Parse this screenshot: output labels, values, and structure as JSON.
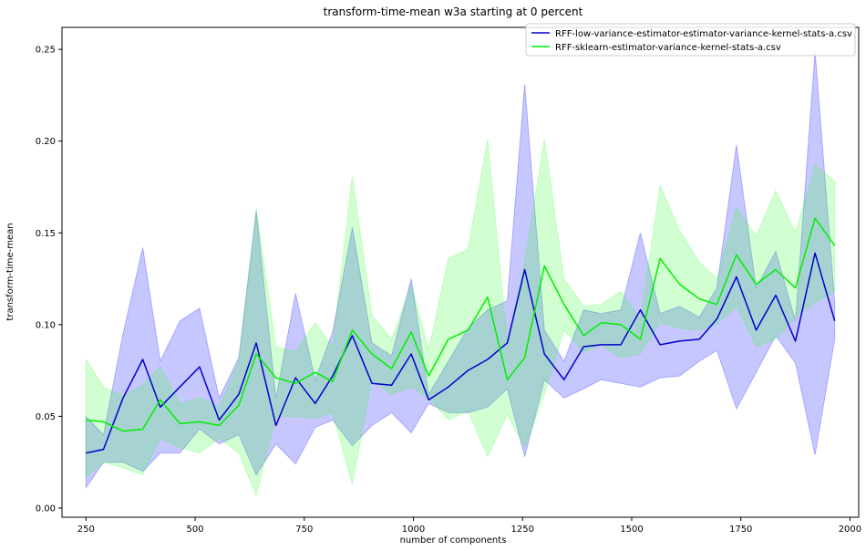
{
  "chart_data": {
    "type": "line",
    "title": "transform-time-mean w3a starting at 0 percent",
    "xlabel": "number of components",
    "ylabel": "transform-time-mean",
    "xlim": [
      195,
      2020
    ],
    "ylim": [
      -0.005,
      0.262
    ],
    "x_ticks": [
      250,
      500,
      750,
      1000,
      1250,
      1500,
      1750,
      2000
    ],
    "y_ticks": [
      0.0,
      0.05,
      0.1,
      0.15,
      0.2,
      0.25
    ],
    "x_tick_labels": [
      "250",
      "500",
      "750",
      "1000",
      "1250",
      "1500",
      "1750",
      "2000"
    ],
    "y_tick_labels": [
      "0.00",
      "0.05",
      "0.10",
      "0.15",
      "0.20",
      "0.25"
    ],
    "legend_position": "top-right",
    "x": [
      250,
      290,
      335,
      380,
      420,
      465,
      510,
      555,
      600,
      640,
      685,
      730,
      775,
      815,
      860,
      905,
      950,
      995,
      1035,
      1080,
      1125,
      1170,
      1215,
      1255,
      1300,
      1345,
      1390,
      1430,
      1475,
      1520,
      1565,
      1610,
      1655,
      1695,
      1740,
      1785,
      1830,
      1875,
      1920,
      1965
    ],
    "series": [
      {
        "name": "RFF-low-variance-estimator-estimator-variance-kernel-stats-a.csv",
        "color": "#0000cc",
        "band_color": "#0000ff",
        "values": [
          0.03,
          0.032,
          0.06,
          0.081,
          0.055,
          0.066,
          0.077,
          0.048,
          0.062,
          0.09,
          0.045,
          0.071,
          0.057,
          0.072,
          0.094,
          0.068,
          0.067,
          0.084,
          0.059,
          0.066,
          0.075,
          0.081,
          0.09,
          0.13,
          0.084,
          0.07,
          0.088,
          0.089,
          0.089,
          0.108,
          0.089,
          0.091,
          0.092,
          0.103,
          0.126,
          0.097,
          0.116,
          0.091,
          0.139,
          0.102
        ],
        "lower": [
          0.011,
          0.025,
          0.025,
          0.02,
          0.03,
          0.03,
          0.043,
          0.035,
          0.04,
          0.018,
          0.035,
          0.024,
          0.044,
          0.048,
          0.034,
          0.045,
          0.052,
          0.041,
          0.057,
          0.052,
          0.052,
          0.055,
          0.065,
          0.028,
          0.07,
          0.06,
          0.065,
          0.07,
          0.068,
          0.066,
          0.071,
          0.072,
          0.08,
          0.086,
          0.054,
          0.074,
          0.094,
          0.079,
          0.029,
          0.092
        ],
        "upper": [
          0.05,
          0.04,
          0.095,
          0.142,
          0.08,
          0.102,
          0.109,
          0.06,
          0.082,
          0.162,
          0.06,
          0.117,
          0.07,
          0.096,
          0.153,
          0.09,
          0.083,
          0.125,
          0.062,
          0.08,
          0.098,
          0.108,
          0.113,
          0.231,
          0.097,
          0.08,
          0.108,
          0.106,
          0.108,
          0.15,
          0.106,
          0.11,
          0.104,
          0.12,
          0.198,
          0.12,
          0.14,
          0.102,
          0.249,
          0.112
        ]
      },
      {
        "name": "RFF-sklearn-estimator-variance-kernel-stats-a.csv",
        "color": "#00ee00",
        "band_color": "#33ff33",
        "values": [
          0.048,
          0.047,
          0.042,
          0.043,
          0.059,
          0.046,
          0.047,
          0.045,
          0.056,
          0.084,
          0.071,
          0.068,
          0.074,
          0.069,
          0.097,
          0.084,
          0.076,
          0.096,
          0.072,
          0.092,
          0.097,
          0.115,
          0.07,
          0.082,
          0.132,
          0.111,
          0.094,
          0.101,
          0.1,
          0.092,
          0.136,
          0.122,
          0.114,
          0.111,
          0.138,
          0.122,
          0.13,
          0.12,
          0.158,
          0.143
        ],
        "lower": [
          0.017,
          0.025,
          0.022,
          0.018,
          0.038,
          0.033,
          0.03,
          0.038,
          0.03,
          0.007,
          0.05,
          0.05,
          0.049,
          0.052,
          0.013,
          0.07,
          0.062,
          0.066,
          0.06,
          0.048,
          0.053,
          0.028,
          0.051,
          0.033,
          0.062,
          0.097,
          0.085,
          0.089,
          0.082,
          0.084,
          0.101,
          0.098,
          0.097,
          0.1,
          0.11,
          0.088,
          0.092,
          0.104,
          0.112,
          0.118
        ],
        "upper": [
          0.081,
          0.066,
          0.061,
          0.067,
          0.077,
          0.057,
          0.06,
          0.055,
          0.08,
          0.163,
          0.088,
          0.085,
          0.101,
          0.088,
          0.181,
          0.105,
          0.092,
          0.122,
          0.086,
          0.136,
          0.141,
          0.201,
          0.09,
          0.134,
          0.201,
          0.125,
          0.11,
          0.111,
          0.118,
          0.103,
          0.176,
          0.151,
          0.134,
          0.125,
          0.164,
          0.148,
          0.173,
          0.15,
          0.187,
          0.178
        ]
      }
    ]
  }
}
